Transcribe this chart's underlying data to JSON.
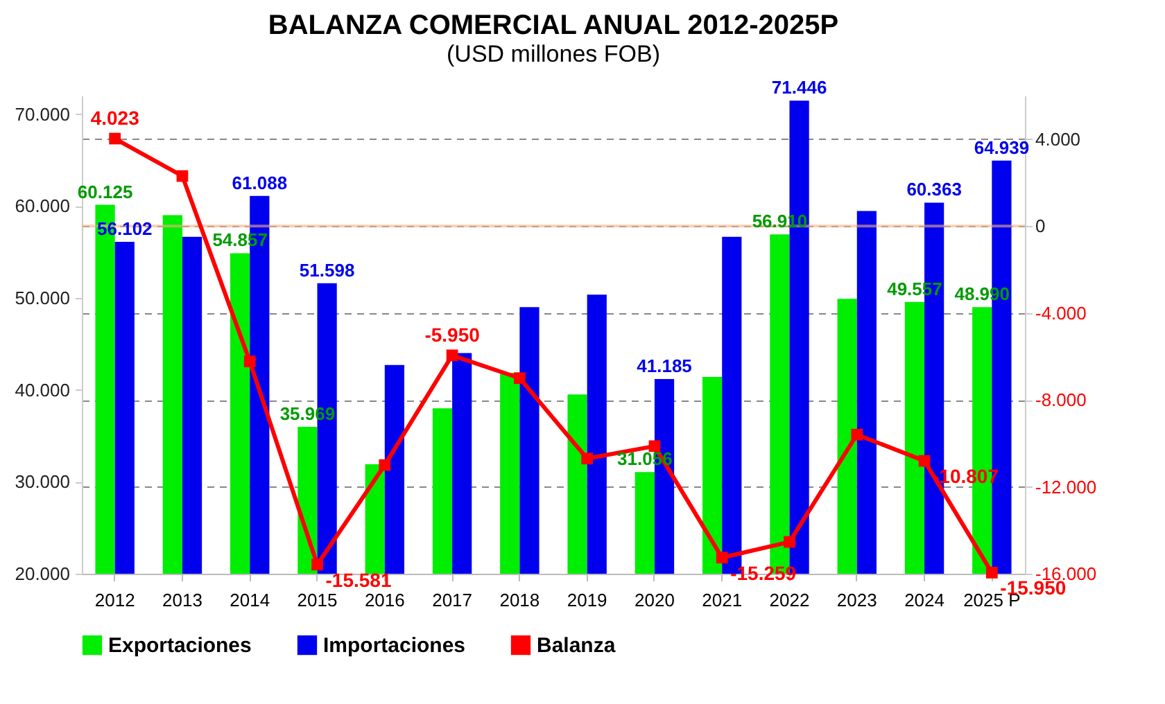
{
  "chart_data": {
    "type": "bar",
    "title": "BALANZA COMERCIAL ANUAL 2012-2025P",
    "subtitle": "(USD millones FOB)",
    "categories": [
      "2012",
      "2013",
      "2014",
      "2015",
      "2016",
      "2017",
      "2018",
      "2019",
      "2020",
      "2021",
      "2022",
      "2023",
      "2024",
      "2025 P"
    ],
    "series": [
      {
        "name": "Exportaciones",
        "color": "#00ee00",
        "values": [
          60125,
          59000,
          54857,
          35969,
          31900,
          38000,
          41850,
          39500,
          31056,
          41400,
          56910,
          49900,
          49557,
          48990
        ],
        "value_labels": [
          "60.125",
          null,
          "54.857",
          "35.969",
          null,
          null,
          null,
          null,
          "31.056",
          null,
          "56.910",
          null,
          "49.557",
          "48.990"
        ]
      },
      {
        "name": "Importaciones",
        "color": "#0000ee",
        "values": [
          56102,
          56650,
          61088,
          51598,
          42700,
          44000,
          49000,
          50350,
          41185,
          56650,
          71446,
          59450,
          60363,
          64939
        ],
        "value_labels": [
          "56.102",
          null,
          "61.088",
          "51.598",
          null,
          null,
          null,
          null,
          "41.185",
          null,
          "71.446",
          null,
          "60.363",
          "64.939"
        ]
      },
      {
        "name": "Balanza",
        "type": "line",
        "axis": "y2",
        "color": "#ff0000",
        "marker": "square",
        "values": [
          4023,
          2300,
          -6231,
          -15581,
          -11000,
          -5950,
          -7000,
          -10700,
          -10129,
          -15259,
          -14536,
          -9600,
          -10807,
          -15950
        ],
        "value_labels": [
          "4.023",
          null,
          null,
          "-15.581",
          null,
          "-5.950",
          null,
          null,
          null,
          "-15.259",
          null,
          null,
          "-10.807",
          "-15.950"
        ]
      }
    ],
    "ylim": [
      20000,
      72000
    ],
    "yticks": [
      {
        "value": 20000,
        "label": "20.000"
      },
      {
        "value": 30000,
        "label": "30.000"
      },
      {
        "value": 40000,
        "label": "40.000"
      },
      {
        "value": 50000,
        "label": "50.000"
      },
      {
        "value": 60000,
        "label": "60.000"
      },
      {
        "value": 70000,
        "label": "70.000"
      }
    ],
    "y2lim": [
      -16000,
      6000
    ],
    "y2ticks": [
      {
        "value": -16000,
        "label": "-16.000"
      },
      {
        "value": -12000,
        "label": "-12.000"
      },
      {
        "value": -8000,
        "label": "-8.000"
      },
      {
        "value": -4000,
        "label": "-4.000"
      },
      0,
      {
        "value": 4000,
        "label": "4.000"
      }
    ],
    "ref_lines": [
      {
        "axis": "y2",
        "value": 0,
        "color": "#f4b183"
      }
    ],
    "grid": "y2",
    "legend": "bottom"
  }
}
